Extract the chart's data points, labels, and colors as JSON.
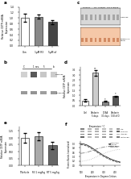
{
  "panel_a": {
    "ylabel": "Relative CETP mRNA\nExpression",
    "categories": [
      "Con",
      "1μM R3",
      "5μM of"
    ],
    "values": [
      1.0,
      1.05,
      0.85
    ],
    "errors": [
      0.15,
      0.08,
      0.06
    ],
    "bar_colors": [
      "#ffffff",
      "#888888",
      "#444444"
    ],
    "ylim": [
      0,
      1.4
    ],
    "yticks": [
      0.0,
      0.2,
      0.4,
      0.6,
      0.8,
      1.0,
      1.2,
      1.4
    ]
  },
  "panel_b": {
    "lane_labels": [
      "C",
      "1",
      "5",
      "b"
    ],
    "ns_text": "n.s.",
    "row1_label": "CETP BP",
    "row2_label": "β-Tubulin",
    "row1_darkness": [
      0.82,
      0.35,
      0.78,
      0.8
    ],
    "row2_darkness": [
      0.6,
      0.58,
      0.62,
      0.61
    ],
    "bg_color": "#e8e8e8"
  },
  "panel_c": {
    "group_labels": [
      "T-Vehicle",
      "R3  1 mg/kg",
      "T5T 5 mg/kg"
    ],
    "upper_bg": "#d8d8d8",
    "lower_bg": "#f5c8a8",
    "row1_label": "CETP BP",
    "row2_label": "Procaspase-3\nmarker",
    "n_lanes": 9,
    "row1_darkness": [
      0.65,
      0.65,
      0.65,
      0.65,
      0.65,
      0.65,
      0.65,
      0.65,
      0.65
    ],
    "row2_darkness": [
      0.72,
      0.72,
      0.72,
      0.72,
      0.72,
      0.72,
      0.72,
      0.72,
      0.72
    ]
  },
  "panel_d": {
    "ylabel": "Relative CETP mRNA\nExpression",
    "categories": [
      "Ctrl",
      "Daidzein\n5 days",
      "DCBA\n30 days",
      "Daidzein\n150 of D"
    ],
    "values": [
      0.5,
      3.2,
      0.4,
      0.9
    ],
    "errors": [
      0.08,
      0.25,
      0.05,
      0.07
    ],
    "bar_colors": [
      "#ffffff",
      "#cccccc",
      "#888888",
      "#555555"
    ],
    "ylim": [
      0,
      3.8
    ],
    "yticks": [
      0.0,
      0.5,
      1.0,
      1.5,
      2.0,
      2.5,
      3.0,
      3.5
    ],
    "significance": [
      "",
      "**",
      "*",
      "*"
    ]
  },
  "panel_e": {
    "ylabel": "Relative CETP mRNA\nExpression",
    "categories": [
      "T-Vehicle",
      "R3 1 mg/kg",
      "RT 5 mg/kg"
    ],
    "values": [
      1.0,
      1.05,
      0.72
    ],
    "errors": [
      0.18,
      0.15,
      0.12
    ],
    "bar_colors": [
      "#ffffff",
      "#aaaaaa",
      "#666666"
    ],
    "ylim": [
      0,
      1.4
    ],
    "yticks": [
      0.0,
      0.25,
      0.5,
      0.75,
      1.0,
      1.25
    ]
  },
  "panel_f": {
    "blot_labels": [
      "Cetp",
      "s-typ P8L",
      "r-typ P8L",
      "control IgG"
    ],
    "n_blot_lanes": 6,
    "group_label": "Temperature ° C",
    "x": [
      90,
      120,
      150,
      180,
      210,
      240,
      270,
      300,
      330,
      360,
      390,
      420,
      450
    ],
    "series": [
      {
        "label": "control type",
        "values": [
          1.0,
          0.98,
          0.93,
          0.85,
          0.75,
          0.65,
          0.55,
          0.45,
          0.38,
          0.3,
          0.24,
          0.19,
          0.15
        ],
        "color": "#222222",
        "linestyle": "-"
      },
      {
        "label": "s-typ P8L",
        "values": [
          0.95,
          0.93,
          0.88,
          0.8,
          0.7,
          0.6,
          0.5,
          0.41,
          0.33,
          0.26,
          0.2,
          0.15,
          0.12
        ],
        "color": "#555555",
        "linestyle": "--"
      },
      {
        "label": "r-typ P8L",
        "values": [
          0.55,
          0.57,
          0.6,
          0.65,
          0.7,
          0.76,
          0.8,
          0.84,
          0.86,
          0.88,
          0.88,
          0.87,
          0.86
        ],
        "color": "#888888",
        "linestyle": "-."
      },
      {
        "label": "control IgG",
        "values": [
          0.18,
          0.2,
          0.23,
          0.27,
          0.33,
          0.4,
          0.47,
          0.54,
          0.6,
          0.65,
          0.69,
          0.72,
          0.73
        ],
        "color": "#bbbbbb",
        "linestyle": ":"
      }
    ],
    "xlabel": "Temperature in Degrees Celsius",
    "ylabel": "Protein Bands (normalized)",
    "ylim": [
      0,
      1.1
    ],
    "yticks": [
      0.0,
      0.2,
      0.4,
      0.6,
      0.8,
      1.0
    ]
  },
  "bg": "#ffffff"
}
